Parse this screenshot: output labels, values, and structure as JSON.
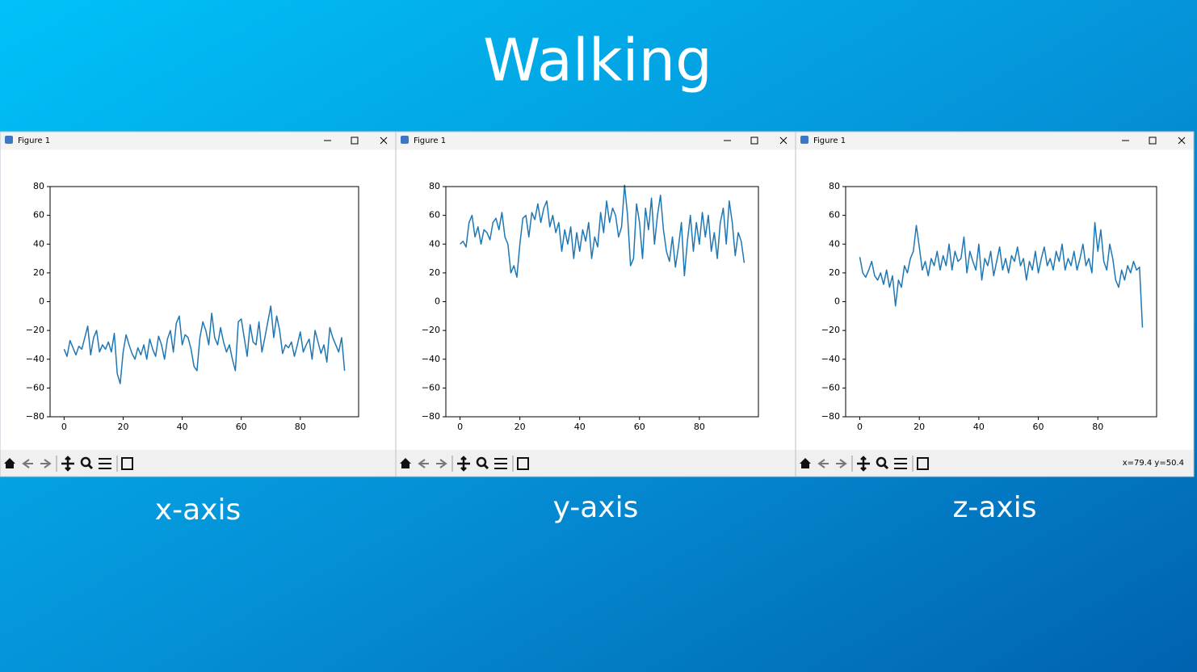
{
  "title": "Walking",
  "windows": [
    {
      "title": "Figure 1",
      "caption": "x-axis"
    },
    {
      "title": "Figure 1",
      "caption": "y-axis"
    },
    {
      "title": "Figure 1",
      "caption": "z-axis",
      "status": "x=79.4 y=50.4"
    }
  ],
  "chart_data": [
    {
      "type": "line",
      "x": [
        0,
        1,
        2,
        3,
        4,
        5,
        6,
        7,
        8,
        9,
        10,
        11,
        12,
        13,
        14,
        15,
        16,
        17,
        18,
        19,
        20,
        21,
        22,
        23,
        24,
        25,
        26,
        27,
        28,
        29,
        30,
        31,
        32,
        33,
        34,
        35,
        36,
        37,
        38,
        39,
        40,
        41,
        42,
        43,
        44,
        45,
        46,
        47,
        48,
        49,
        50,
        51,
        52,
        53,
        54,
        55,
        56,
        57,
        58,
        59,
        60,
        61,
        62,
        63,
        64,
        65,
        66,
        67,
        68,
        69,
        70,
        71,
        72,
        73,
        74,
        75,
        76,
        77,
        78,
        79,
        80,
        81,
        82,
        83,
        84,
        85,
        86,
        87,
        88,
        89,
        90,
        91,
        92,
        93,
        94,
        95
      ],
      "series": [
        {
          "color": "#1f77b4",
          "values": [
            -33,
            -38,
            -27,
            -32,
            -37,
            -31,
            -33,
            -25,
            -17,
            -37,
            -25,
            -20,
            -35,
            -30,
            -33,
            -28,
            -35,
            -22,
            -50,
            -57,
            -35,
            -23,
            -30,
            -36,
            -40,
            -32,
            -37,
            -30,
            -40,
            -26,
            -33,
            -38,
            -24,
            -30,
            -40,
            -26,
            -20,
            -35,
            -15,
            -10,
            -30,
            -23,
            -25,
            -33,
            -45,
            -48,
            -25,
            -14,
            -20,
            -30,
            -8,
            -25,
            -30,
            -18,
            -28,
            -35,
            -30,
            -40,
            -48,
            -14,
            -12,
            -25,
            -38,
            -16,
            -28,
            -30,
            -14,
            -35,
            -25,
            -14,
            -3,
            -25,
            -10,
            -20,
            -36,
            -30,
            -32,
            -28,
            -38,
            -30,
            -21,
            -35,
            -30,
            -26,
            -40,
            -20,
            -28,
            -36,
            -30,
            -42,
            -18,
            -25,
            -30,
            -35,
            -25,
            -48
          ]
        }
      ],
      "xlim": [
        -4.75,
        99.75
      ],
      "xticks": [
        0,
        20,
        40,
        60,
        80
      ],
      "ylim": [
        -80,
        80
      ],
      "yticks": [
        {
          "value": -80,
          "label": "−80"
        },
        {
          "value": -60,
          "label": "−60"
        },
        {
          "value": -40,
          "label": "−40"
        },
        {
          "value": -20,
          "label": "−20"
        },
        0,
        20,
        40,
        60,
        80
      ]
    },
    {
      "type": "line",
      "x": [
        0,
        1,
        2,
        3,
        4,
        5,
        6,
        7,
        8,
        9,
        10,
        11,
        12,
        13,
        14,
        15,
        16,
        17,
        18,
        19,
        20,
        21,
        22,
        23,
        24,
        25,
        26,
        27,
        28,
        29,
        30,
        31,
        32,
        33,
        34,
        35,
        36,
        37,
        38,
        39,
        40,
        41,
        42,
        43,
        44,
        45,
        46,
        47,
        48,
        49,
        50,
        51,
        52,
        53,
        54,
        55,
        56,
        57,
        58,
        59,
        60,
        61,
        62,
        63,
        64,
        65,
        66,
        67,
        68,
        69,
        70,
        71,
        72,
        73,
        74,
        75,
        76,
        77,
        78,
        79,
        80,
        81,
        82,
        83,
        84,
        85,
        86,
        87,
        88,
        89,
        90,
        91,
        92,
        93,
        94,
        95
      ],
      "series": [
        {
          "color": "#1f77b4",
          "values": [
            40,
            42,
            38,
            55,
            60,
            45,
            52,
            40,
            50,
            48,
            43,
            55,
            58,
            50,
            62,
            45,
            40,
            20,
            25,
            17,
            40,
            58,
            60,
            45,
            62,
            57,
            68,
            55,
            65,
            70,
            52,
            60,
            48,
            55,
            35,
            50,
            40,
            52,
            30,
            48,
            35,
            50,
            42,
            55,
            30,
            45,
            38,
            62,
            48,
            70,
            55,
            65,
            60,
            45,
            52,
            81,
            60,
            25,
            30,
            68,
            55,
            30,
            65,
            50,
            72,
            40,
            60,
            74,
            50,
            35,
            28,
            45,
            24,
            38,
            55,
            18,
            42,
            60,
            35,
            55,
            40,
            62,
            45,
            60,
            35,
            48,
            30,
            55,
            65,
            40,
            70,
            55,
            32,
            48,
            42,
            27
          ]
        }
      ],
      "xlim": [
        -4.75,
        99.75
      ],
      "xticks": [
        0,
        20,
        40,
        60,
        80
      ],
      "ylim": [
        -80,
        80
      ],
      "yticks": [
        {
          "value": -80,
          "label": "−80"
        },
        {
          "value": -60,
          "label": "−60"
        },
        {
          "value": -40,
          "label": "−40"
        },
        {
          "value": -20,
          "label": "−20"
        },
        0,
        20,
        40,
        60,
        80
      ]
    },
    {
      "type": "line",
      "x": [
        0,
        1,
        2,
        3,
        4,
        5,
        6,
        7,
        8,
        9,
        10,
        11,
        12,
        13,
        14,
        15,
        16,
        17,
        18,
        19,
        20,
        21,
        22,
        23,
        24,
        25,
        26,
        27,
        28,
        29,
        30,
        31,
        32,
        33,
        34,
        35,
        36,
        37,
        38,
        39,
        40,
        41,
        42,
        43,
        44,
        45,
        46,
        47,
        48,
        49,
        50,
        51,
        52,
        53,
        54,
        55,
        56,
        57,
        58,
        59,
        60,
        61,
        62,
        63,
        64,
        65,
        66,
        67,
        68,
        69,
        70,
        71,
        72,
        73,
        74,
        75,
        76,
        77,
        78,
        79,
        80,
        81,
        82,
        83,
        84,
        85,
        86,
        87,
        88,
        89,
        90,
        91,
        92,
        93,
        94,
        95
      ],
      "series": [
        {
          "color": "#1f77b4",
          "values": [
            31,
            20,
            17,
            22,
            28,
            18,
            15,
            20,
            12,
            22,
            10,
            18,
            -3,
            15,
            10,
            25,
            20,
            30,
            35,
            53,
            38,
            22,
            28,
            18,
            30,
            25,
            35,
            22,
            32,
            25,
            40,
            22,
            35,
            28,
            30,
            45,
            20,
            35,
            28,
            22,
            40,
            15,
            30,
            25,
            35,
            18,
            28,
            38,
            22,
            30,
            20,
            32,
            28,
            38,
            25,
            30,
            15,
            28,
            22,
            35,
            20,
            30,
            38,
            25,
            30,
            22,
            35,
            28,
            40,
            22,
            30,
            25,
            35,
            22,
            30,
            40,
            25,
            30,
            20,
            55,
            35,
            50,
            28,
            22,
            40,
            30,
            15,
            10,
            22,
            15,
            25,
            20,
            28,
            22,
            24,
            -18
          ]
        }
      ],
      "xlim": [
        -4.75,
        99.75
      ],
      "xticks": [
        0,
        20,
        40,
        60,
        80
      ],
      "ylim": [
        -80,
        80
      ],
      "yticks": [
        {
          "value": -80,
          "label": "−80"
        },
        {
          "value": -60,
          "label": "−60"
        },
        {
          "value": -40,
          "label": "−40"
        },
        {
          "value": -20,
          "label": "−20"
        },
        0,
        20,
        40,
        60,
        80
      ]
    }
  ]
}
